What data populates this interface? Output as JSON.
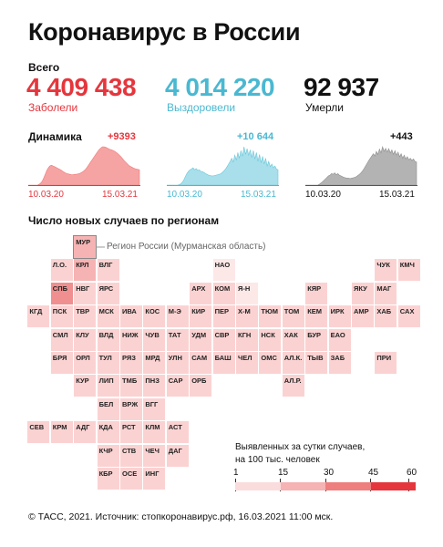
{
  "title": "Коронавирус в России",
  "totals": {
    "label": "Всего",
    "infected": {
      "value": "4 409 438",
      "label": "Заболели"
    },
    "recovered": {
      "value": "4 014 220",
      "label": "Выздоровели"
    },
    "deaths": {
      "value": "92 937",
      "label": "Умерли"
    }
  },
  "dynamics": {
    "label": "Динамика",
    "infected": {
      "delta": "+9393",
      "start": "10.03.20",
      "end": "15.03.21"
    },
    "recovered": {
      "delta": "+10 644",
      "start": "10.03.20",
      "end": "15.03.21"
    },
    "deaths": {
      "delta": "+443",
      "start": "10.03.20",
      "end": "15.03.21"
    }
  },
  "map_title": "Число новых случаев по регионам",
  "callout": "Регион России (Мурманская область)",
  "legend": {
    "title_line1": "Выявленных за сутки случаев,",
    "title_line2": "на 100 тыс. человек",
    "ticks": [
      "1",
      "15",
      "30",
      "45",
      "60"
    ],
    "colors": [
      "#fbdcdc",
      "#f6b3b3",
      "#ef7e7e",
      "#e5363d"
    ]
  },
  "footer": "© ТАСС, 2021. Источник: стопкоронавирус.рф, 16.03.2021 11:00 мск.",
  "chart_data": [
    {
      "type": "area",
      "title": "Заболели",
      "x_start": "10.03.20",
      "x_end": "15.03.21",
      "values": [
        0,
        0,
        0,
        0,
        0,
        0,
        0,
        0.02,
        0.05,
        0.1,
        0.18,
        0.28,
        0.38,
        0.45,
        0.5,
        0.52,
        0.5,
        0.48,
        0.46,
        0.44,
        0.42,
        0.4,
        0.37,
        0.34,
        0.32,
        0.3,
        0.29,
        0.28,
        0.27,
        0.27,
        0.28,
        0.28,
        0.29,
        0.3,
        0.32,
        0.34,
        0.37,
        0.41,
        0.46,
        0.52,
        0.58,
        0.64,
        0.7,
        0.76,
        0.82,
        0.88,
        0.93,
        0.97,
        1.0,
        1.0,
        0.99,
        0.97,
        0.95,
        0.93,
        0.92,
        0.9,
        0.88,
        0.85,
        0.82,
        0.78,
        0.74,
        0.69,
        0.64,
        0.6,
        0.56,
        0.52,
        0.49,
        0.47,
        0.45,
        0.43,
        0.42,
        0.41,
        0.4
      ]
    },
    {
      "type": "area",
      "title": "Выздоровели",
      "x_start": "10.03.20",
      "x_end": "15.03.21",
      "values": [
        0,
        0,
        0,
        0,
        0,
        0,
        0,
        0,
        0.01,
        0.03,
        0.07,
        0.13,
        0.22,
        0.3,
        0.36,
        0.4,
        0.42,
        0.45,
        0.4,
        0.43,
        0.38,
        0.4,
        0.36,
        0.35,
        0.33,
        0.3,
        0.28,
        0.26,
        0.25,
        0.24,
        0.24,
        0.25,
        0.26,
        0.27,
        0.28,
        0.3,
        0.33,
        0.37,
        0.42,
        0.48,
        0.55,
        0.62,
        0.7,
        0.6,
        0.78,
        0.65,
        0.85,
        0.7,
        0.9,
        0.75,
        1.0,
        0.8,
        0.95,
        0.78,
        0.92,
        0.72,
        0.9,
        0.68,
        0.85,
        0.62,
        0.8,
        0.58,
        0.75,
        0.55,
        0.7,
        0.5,
        0.62,
        0.48,
        0.55,
        0.45,
        0.5,
        0.42,
        0.4
      ]
    },
    {
      "type": "area",
      "title": "Умерли",
      "x_start": "10.03.20",
      "x_end": "15.03.21",
      "values": [
        0,
        0,
        0,
        0,
        0,
        0,
        0,
        0,
        0,
        0.02,
        0.05,
        0.08,
        0.12,
        0.16,
        0.2,
        0.24,
        0.26,
        0.3,
        0.28,
        0.32,
        0.27,
        0.3,
        0.26,
        0.24,
        0.22,
        0.2,
        0.19,
        0.18,
        0.18,
        0.17,
        0.18,
        0.19,
        0.2,
        0.22,
        0.25,
        0.28,
        0.32,
        0.37,
        0.43,
        0.5,
        0.57,
        0.64,
        0.7,
        0.76,
        0.82,
        0.76,
        0.88,
        0.8,
        0.94,
        0.84,
        1.0,
        0.88,
        0.96,
        0.86,
        0.95,
        0.84,
        0.92,
        0.8,
        0.9,
        0.78,
        0.86,
        0.74,
        0.82,
        0.7,
        0.78,
        0.68,
        0.74,
        0.66,
        0.7,
        0.64,
        0.68,
        0.62,
        0.6
      ]
    }
  ],
  "regions": [
    {
      "code": "МУР",
      "row": 0,
      "col": 3,
      "level": 2,
      "highlight": true
    },
    {
      "code": "Л.О.",
      "row": 1,
      "col": 2,
      "level": 1
    },
    {
      "code": "КРЛ",
      "row": 1,
      "col": 3,
      "level": 2
    },
    {
      "code": "ВЛГ",
      "row": 1,
      "col": 4,
      "level": 1
    },
    {
      "code": "НАО",
      "row": 1,
      "col": 9,
      "level": 0
    },
    {
      "code": "ЧУК",
      "row": 1,
      "col": 16,
      "level": 1
    },
    {
      "code": "КМЧ",
      "row": 1,
      "col": 17,
      "level": 1
    },
    {
      "code": "СПБ",
      "row": 2,
      "col": 2,
      "level": 3
    },
    {
      "code": "НВГ",
      "row": 2,
      "col": 3,
      "level": 1
    },
    {
      "code": "ЯРС",
      "row": 2,
      "col": 4,
      "level": 1
    },
    {
      "code": "АРХ",
      "row": 2,
      "col": 8,
      "level": 1
    },
    {
      "code": "КОМ",
      "row": 2,
      "col": 9,
      "level": 1
    },
    {
      "code": "Я-Н",
      "row": 2,
      "col": 10,
      "level": 0
    },
    {
      "code": "КЯР",
      "row": 2,
      "col": 13,
      "level": 1
    },
    {
      "code": "ЯКУ",
      "row": 2,
      "col": 15,
      "level": 1
    },
    {
      "code": "МАГ",
      "row": 2,
      "col": 16,
      "level": 1
    },
    {
      "code": "КГД",
      "row": 3,
      "col": 1,
      "level": 1
    },
    {
      "code": "ПСК",
      "row": 3,
      "col": 2,
      "level": 1
    },
    {
      "code": "ТВР",
      "row": 3,
      "col": 3,
      "level": 1
    },
    {
      "code": "МСК",
      "row": 3,
      "col": 4,
      "level": 1
    },
    {
      "code": "ИВА",
      "row": 3,
      "col": 5,
      "level": 1
    },
    {
      "code": "КОС",
      "row": 3,
      "col": 6,
      "level": 1
    },
    {
      "code": "М-Э",
      "row": 3,
      "col": 7,
      "level": 1
    },
    {
      "code": "КИР",
      "row": 3,
      "col": 8,
      "level": 1
    },
    {
      "code": "ПЕР",
      "row": 3,
      "col": 9,
      "level": 1
    },
    {
      "code": "Х-М",
      "row": 3,
      "col": 10,
      "level": 1
    },
    {
      "code": "ТЮМ",
      "row": 3,
      "col": 11,
      "level": 1
    },
    {
      "code": "ТОМ",
      "row": 3,
      "col": 12,
      "level": 1
    },
    {
      "code": "КЕМ",
      "row": 3,
      "col": 13,
      "level": 1
    },
    {
      "code": "ИРК",
      "row": 3,
      "col": 14,
      "level": 1
    },
    {
      "code": "АМР",
      "row": 3,
      "col": 15,
      "level": 1
    },
    {
      "code": "ХАБ",
      "row": 3,
      "col": 16,
      "level": 1
    },
    {
      "code": "САХ",
      "row": 3,
      "col": 17,
      "level": 1
    },
    {
      "code": "СМЛ",
      "row": 4,
      "col": 2,
      "level": 1
    },
    {
      "code": "КЛУ",
      "row": 4,
      "col": 3,
      "level": 1
    },
    {
      "code": "ВЛД",
      "row": 4,
      "col": 4,
      "level": 1
    },
    {
      "code": "НИЖ",
      "row": 4,
      "col": 5,
      "level": 1
    },
    {
      "code": "ЧУВ",
      "row": 4,
      "col": 6,
      "level": 1
    },
    {
      "code": "ТАТ",
      "row": 4,
      "col": 7,
      "level": 1
    },
    {
      "code": "УДМ",
      "row": 4,
      "col": 8,
      "level": 1
    },
    {
      "code": "СВР",
      "row": 4,
      "col": 9,
      "level": 1
    },
    {
      "code": "КГН",
      "row": 4,
      "col": 10,
      "level": 1
    },
    {
      "code": "НСК",
      "row": 4,
      "col": 11,
      "level": 1
    },
    {
      "code": "ХАК",
      "row": 4,
      "col": 12,
      "level": 1
    },
    {
      "code": "БУР",
      "row": 4,
      "col": 13,
      "level": 1
    },
    {
      "code": "ЕАО",
      "row": 4,
      "col": 14,
      "level": 1
    },
    {
      "code": "БРЯ",
      "row": 5,
      "col": 2,
      "level": 1
    },
    {
      "code": "ОРЛ",
      "row": 5,
      "col": 3,
      "level": 1
    },
    {
      "code": "ТУЛ",
      "row": 5,
      "col": 4,
      "level": 1
    },
    {
      "code": "РЯЗ",
      "row": 5,
      "col": 5,
      "level": 1
    },
    {
      "code": "МРД",
      "row": 5,
      "col": 6,
      "level": 1
    },
    {
      "code": "УЛН",
      "row": 5,
      "col": 7,
      "level": 1
    },
    {
      "code": "САМ",
      "row": 5,
      "col": 8,
      "level": 1
    },
    {
      "code": "БАШ",
      "row": 5,
      "col": 9,
      "level": 1
    },
    {
      "code": "ЧЕЛ",
      "row": 5,
      "col": 10,
      "level": 1
    },
    {
      "code": "ОМС",
      "row": 5,
      "col": 11,
      "level": 1
    },
    {
      "code": "АЛ.К.",
      "row": 5,
      "col": 12,
      "level": 1
    },
    {
      "code": "ТЫВ",
      "row": 5,
      "col": 13,
      "level": 1
    },
    {
      "code": "ЗАБ",
      "row": 5,
      "col": 14,
      "level": 1
    },
    {
      "code": "ПРИ",
      "row": 5,
      "col": 16,
      "level": 1
    },
    {
      "code": "КУР",
      "row": 6,
      "col": 3,
      "level": 1
    },
    {
      "code": "ЛИП",
      "row": 6,
      "col": 4,
      "level": 1
    },
    {
      "code": "ТМБ",
      "row": 6,
      "col": 5,
      "level": 1
    },
    {
      "code": "ПНЗ",
      "row": 6,
      "col": 6,
      "level": 1
    },
    {
      "code": "САР",
      "row": 6,
      "col": 7,
      "level": 1
    },
    {
      "code": "ОРБ",
      "row": 6,
      "col": 8,
      "level": 1
    },
    {
      "code": "АЛ.Р.",
      "row": 6,
      "col": 12,
      "level": 1
    },
    {
      "code": "БЕЛ",
      "row": 7,
      "col": 4,
      "level": 1
    },
    {
      "code": "ВРЖ",
      "row": 7,
      "col": 5,
      "level": 1
    },
    {
      "code": "ВГГ",
      "row": 7,
      "col": 6,
      "level": 1
    },
    {
      "code": "СЕВ",
      "row": 8,
      "col": 1,
      "level": 1
    },
    {
      "code": "КРМ",
      "row": 8,
      "col": 2,
      "level": 1
    },
    {
      "code": "АДГ",
      "row": 8,
      "col": 3,
      "level": 1
    },
    {
      "code": "КДА",
      "row": 8,
      "col": 4,
      "level": 1
    },
    {
      "code": "РСТ",
      "row": 8,
      "col": 5,
      "level": 1
    },
    {
      "code": "КЛМ",
      "row": 8,
      "col": 6,
      "level": 1
    },
    {
      "code": "АСТ",
      "row": 8,
      "col": 7,
      "level": 1
    },
    {
      "code": "КЧР",
      "row": 9,
      "col": 4,
      "level": 1
    },
    {
      "code": "СТВ",
      "row": 9,
      "col": 5,
      "level": 1
    },
    {
      "code": "ЧЕЧ",
      "row": 9,
      "col": 6,
      "level": 1
    },
    {
      "code": "ДАГ",
      "row": 9,
      "col": 7,
      "level": 1
    },
    {
      "code": "КБР",
      "row": 10,
      "col": 4,
      "level": 1
    },
    {
      "code": "ОСЕ",
      "row": 10,
      "col": 5,
      "level": 1
    },
    {
      "code": "ИНГ",
      "row": 10,
      "col": 6,
      "level": 1
    }
  ]
}
